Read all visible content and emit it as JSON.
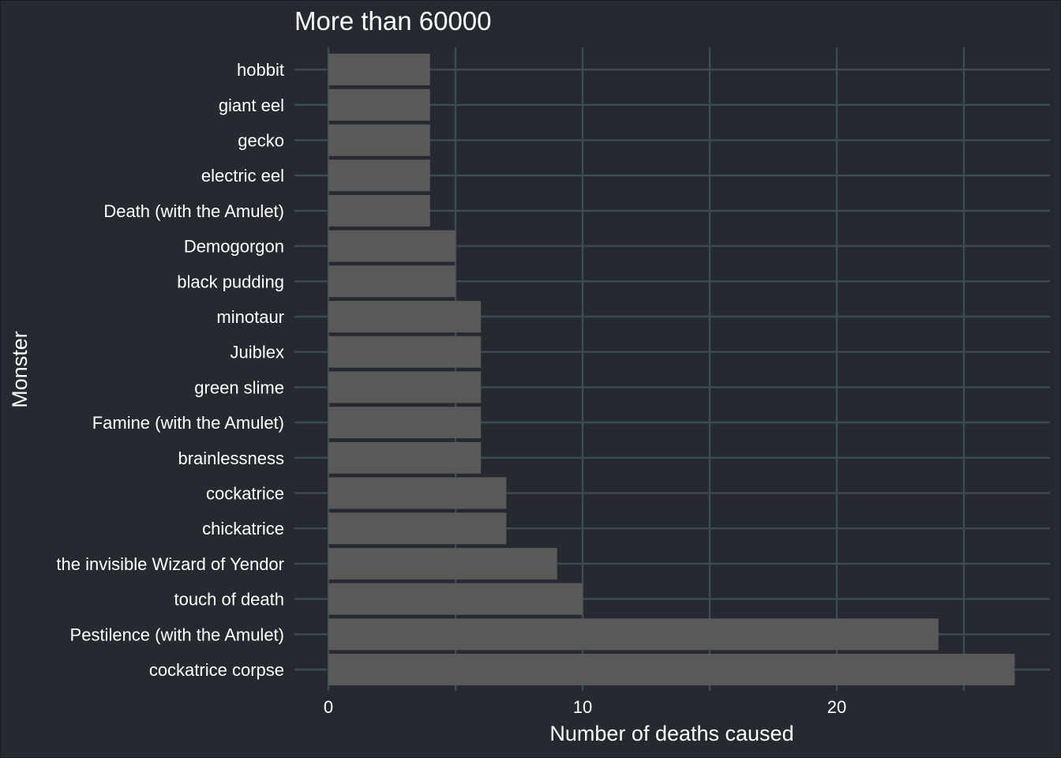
{
  "chart_data": {
    "type": "bar",
    "orientation": "horizontal",
    "title": "More than 60000",
    "xlabel": "Number of deaths caused",
    "ylabel": "Monster",
    "xlim": [
      0,
      28
    ],
    "xticks": [
      0,
      10,
      20
    ],
    "minor_xticks": [
      5,
      15,
      25
    ],
    "grid": true,
    "categories": [
      "cockatrice corpse",
      "Pestilence (with the Amulet)",
      "touch of death",
      "the invisible Wizard of Yendor",
      "chickatrice",
      "cockatrice",
      "brainlessness",
      "Famine (with the Amulet)",
      "green slime",
      "Juiblex",
      "minotaur",
      "black pudding",
      "Demogorgon",
      "Death (with the Amulet)",
      "electric eel",
      "gecko",
      "giant eel",
      "hobbit"
    ],
    "values": [
      27,
      24,
      10,
      9,
      7,
      7,
      6,
      6,
      6,
      6,
      6,
      5,
      5,
      4,
      4,
      4,
      4,
      4
    ]
  },
  "colors": {
    "background": "#262a30",
    "grid": "#3c4b54",
    "bar": "#595959",
    "text": "#ffffff"
  }
}
